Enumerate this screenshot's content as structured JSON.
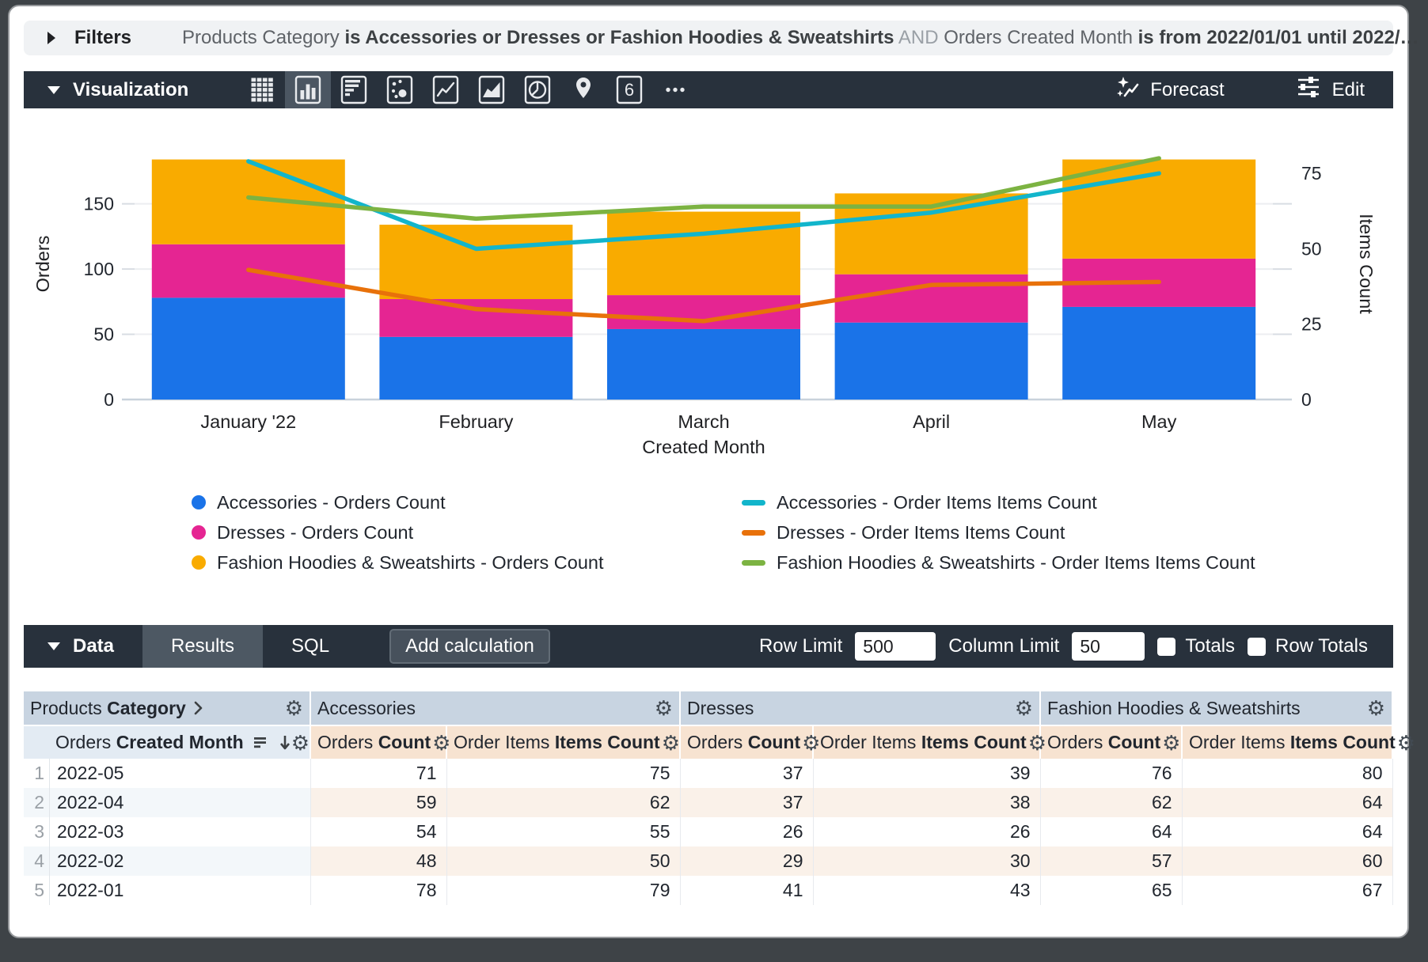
{
  "filters_bar": {
    "label": "Filters",
    "segments": [
      {
        "text": "Products Category ",
        "style": "normal"
      },
      {
        "text": "is Accessories or Dresses or Fashion Hoodies & Sweatshirts",
        "style": "bold"
      },
      {
        "text": " AND ",
        "style": "muted"
      },
      {
        "text": "Orders Created Month ",
        "style": "normal"
      },
      {
        "text": "is from 2022/01/01 until 2022/…",
        "style": "bold"
      }
    ]
  },
  "viz_bar": {
    "label": "Visualization",
    "chart_type_icons": [
      {
        "name": "table-chart-icon",
        "selected": false
      },
      {
        "name": "column-chart-icon",
        "selected": true
      },
      {
        "name": "bar-chart-icon",
        "selected": false
      },
      {
        "name": "scatter-chart-icon",
        "selected": false
      },
      {
        "name": "line-chart-icon",
        "selected": false
      },
      {
        "name": "area-chart-icon",
        "selected": false
      },
      {
        "name": "pie-chart-icon",
        "selected": false
      },
      {
        "name": "map-chart-icon",
        "selected": false
      },
      {
        "name": "single-value-icon",
        "selected": false
      },
      {
        "name": "more-chart-types-icon",
        "selected": false
      }
    ],
    "forecast_label": "Forecast",
    "edit_label": "Edit"
  },
  "chart_data": {
    "type": "bar",
    "subtype": "stacked-columns-with-lines",
    "categories": [
      "January '22",
      "February",
      "March",
      "April",
      "May"
    ],
    "bar_series": [
      {
        "name": "Accessories - Orders Count",
        "color": "#1A73E8",
        "values": [
          78,
          48,
          54,
          59,
          71
        ]
      },
      {
        "name": "Dresses - Orders Count",
        "color": "#E52592",
        "values": [
          41,
          29,
          26,
          37,
          37
        ]
      },
      {
        "name": "Fashion Hoodies & Sweatshirts - Orders Count",
        "color": "#F9AB00",
        "values": [
          65,
          57,
          64,
          62,
          76
        ]
      }
    ],
    "line_series": [
      {
        "name": "Accessories - Order Items Items Count",
        "color": "#12B5CB",
        "values": [
          79,
          50,
          55,
          62,
          75
        ]
      },
      {
        "name": "Dresses - Order Items Items Count",
        "color": "#E8710A",
        "values": [
          43,
          30,
          26,
          38,
          39
        ]
      },
      {
        "name": "Fashion Hoodies & Sweatshirts - Order Items Items Count",
        "color": "#7CB342",
        "values": [
          67,
          60,
          64,
          64,
          80
        ]
      }
    ],
    "left_axis": {
      "title": "Orders",
      "ticks": [
        0,
        50,
        100,
        150
      ],
      "max": 208
    },
    "right_axis": {
      "title": "Items Count",
      "ticks": [
        0,
        25,
        50,
        75
      ],
      "max": 90
    },
    "xlabel": "Created Month",
    "grid": true,
    "legend_position": "bottom"
  },
  "data_bar": {
    "label": "Data",
    "tabs": [
      {
        "label": "Results",
        "selected": true
      },
      {
        "label": "SQL",
        "selected": false
      }
    ],
    "add_calculation_label": "Add calculation",
    "row_limit_label": "Row Limit",
    "row_limit_value": "500",
    "column_limit_label": "Column Limit",
    "column_limit_value": "50",
    "totals_label": "Totals",
    "totals_checked": false,
    "row_totals_label": "Row Totals",
    "row_totals_checked": false
  },
  "table": {
    "dimension_group_header": {
      "normal": "Products",
      "bold": "Category"
    },
    "dimension_column_header": {
      "normal": "Orders",
      "bold": "Created Month"
    },
    "group_headers": [
      "Accessories",
      "Dresses",
      "Fashion Hoodies & Sweatshirts"
    ],
    "measure_column_headers": [
      {
        "normal": "Orders",
        "bold": "Count"
      },
      {
        "normal": "Order Items",
        "bold": "Items Count"
      }
    ],
    "rows": [
      {
        "num": "1",
        "month": "2022-05",
        "values": [
          "71",
          "75",
          "37",
          "39",
          "76",
          "80"
        ]
      },
      {
        "num": "2",
        "month": "2022-04",
        "values": [
          "59",
          "62",
          "37",
          "38",
          "62",
          "64"
        ]
      },
      {
        "num": "3",
        "month": "2022-03",
        "values": [
          "54",
          "55",
          "26",
          "26",
          "64",
          "64"
        ]
      },
      {
        "num": "4",
        "month": "2022-02",
        "values": [
          "48",
          "50",
          "29",
          "30",
          "57",
          "60"
        ]
      },
      {
        "num": "5",
        "month": "2022-01",
        "values": [
          "78",
          "79",
          "41",
          "43",
          "65",
          "67"
        ]
      }
    ]
  }
}
